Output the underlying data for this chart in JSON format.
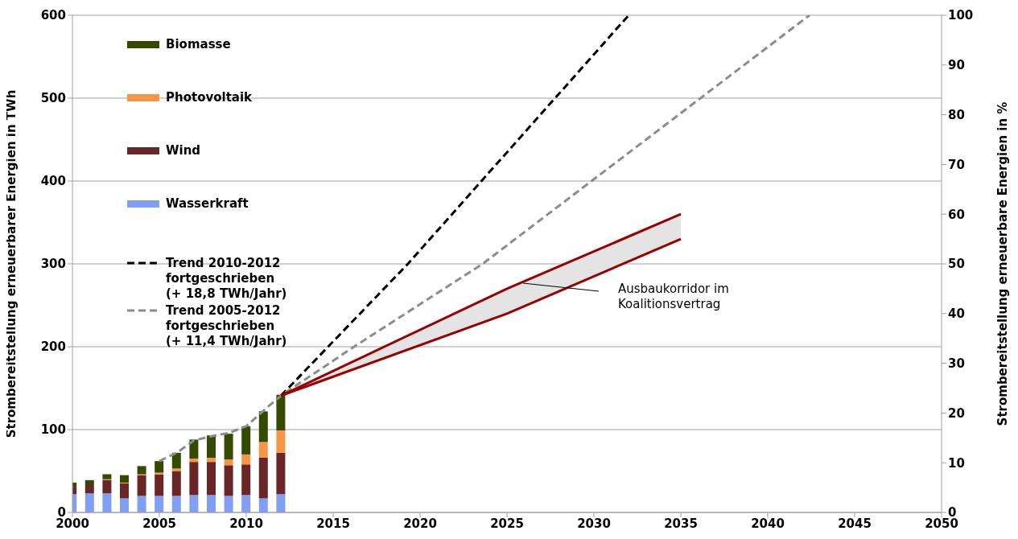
{
  "chart_data": {
    "type": "bar",
    "stacked": true,
    "ylabel": "Strombereitstellung erneuerbarer Energien in TWh",
    "y2label": "Strombereitstellung erneuerbare Energien in %",
    "x": [
      2000,
      2001,
      2002,
      2003,
      2004,
      2005,
      2006,
      2007,
      2008,
      2009,
      2010,
      2011,
      2012
    ],
    "series": [
      {
        "name": "Wasserkraft",
        "color": "#7f9ef4",
        "values": [
          22,
          23,
          23,
          17,
          20,
          20,
          20,
          21,
          21,
          20,
          21,
          17,
          22
        ]
      },
      {
        "name": "Wind",
        "color": "#6a2526",
        "values": [
          9,
          11,
          16,
          18,
          25,
          26,
          30,
          40,
          40,
          37,
          37,
          49,
          50
        ]
      },
      {
        "name": "Photovoltaik",
        "color": "#f79646",
        "values": [
          0,
          0,
          1,
          1,
          1,
          2,
          3,
          4,
          5,
          7,
          12,
          19,
          27
        ]
      },
      {
        "name": "Biomasse",
        "color": "#344a00",
        "values": [
          5,
          5,
          6,
          9,
          10,
          14,
          19,
          23,
          27,
          31,
          34,
          37,
          43
        ]
      },
      {
        "name": "Trend 2010-2012 fortgeschrieben (+ 18,8 TWh/Jahr)",
        "type": "line",
        "color": "#000000",
        "line_style": "dashed",
        "x": [
          2012,
          2019.3,
          2032
        ],
        "values": [
          141,
          300,
          600
        ]
      },
      {
        "name": "Trend 2005-2012 fortgeschrieben (+ 11,4 TWh/Jahr)",
        "type": "line",
        "color": "#8c8c8c",
        "line_style": "dashed",
        "x": [
          2005,
          2006,
          2007,
          2008,
          2009,
          2010,
          2011,
          2012,
          2016.2,
          2023.6,
          2042.4
        ],
        "values": [
          62,
          72,
          87,
          92,
          96,
          104,
          123,
          141,
          200,
          300,
          600
        ]
      },
      {
        "type": "line",
        "color": "#990000",
        "line_style": "solid",
        "x": [
          2012,
          2025,
          2035
        ],
        "values": [
          141,
          270,
          360
        ],
        "lower": [
          141,
          240,
          330
        ],
        "upper": [
          141,
          270,
          360
        ]
      },
      {
        "type": "line",
        "color": "#990000",
        "line_style": "solid",
        "x": [
          2012,
          2025,
          2035
        ],
        "values": [
          141,
          240,
          330
        ]
      }
    ],
    "xlim": [
      2000,
      2050
    ],
    "xticks": [
      2000,
      2005,
      2010,
      2015,
      2020,
      2025,
      2030,
      2035,
      2040,
      2045,
      2050
    ],
    "ylim": [
      0,
      600
    ],
    "yticks": [
      0,
      100,
      200,
      300,
      400,
      500,
      600
    ],
    "y2lim": [
      0,
      100
    ],
    "y2ticks": [
      0,
      10,
      20,
      30,
      40,
      50,
      60,
      70,
      80,
      90,
      100
    ],
    "annotations": [
      "Ausbaukorridor im\nKoalitionsvertrag"
    ],
    "grid": "y",
    "legend": "top left",
    "marker": "none"
  }
}
